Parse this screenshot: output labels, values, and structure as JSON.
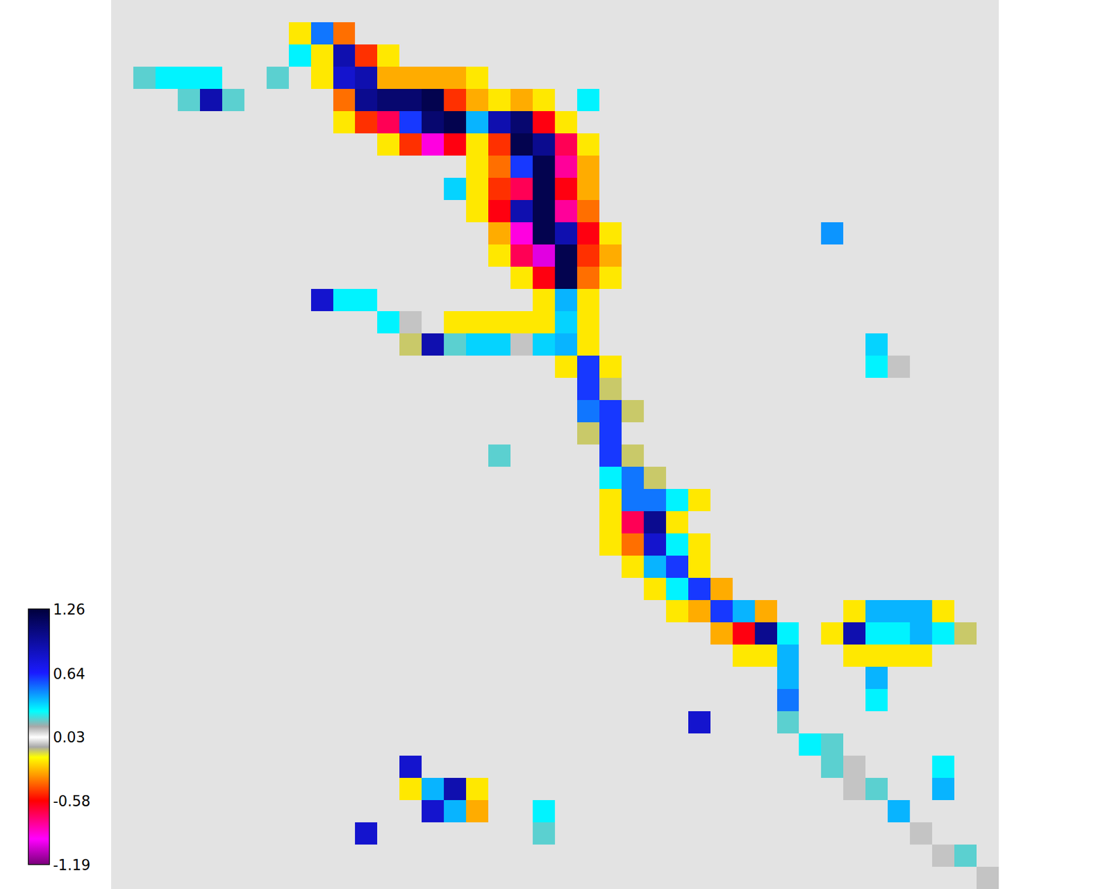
{
  "chart_data": {
    "type": "heatmap",
    "tick_labels": false,
    "colorbar": {
      "range": [
        -1.19,
        1.26
      ],
      "ticks": [
        1.26,
        0.64,
        0.03,
        -0.58,
        -1.19
      ]
    },
    "z": [
      [
        0,
        0,
        0,
        0,
        0,
        0,
        0,
        0,
        0,
        0,
        0,
        0,
        0,
        0,
        0,
        0,
        0,
        0,
        0,
        0,
        0,
        0,
        0,
        0,
        0,
        0,
        0,
        0,
        0,
        0,
        0,
        0,
        0,
        0,
        0,
        0,
        0,
        0,
        0,
        0
      ],
      [
        0,
        0,
        0,
        0,
        0,
        0,
        0,
        0,
        -0.2,
        0.5,
        -0.4,
        0,
        0,
        0,
        0,
        0,
        0,
        0,
        0,
        0,
        0,
        0,
        0,
        0,
        0,
        0,
        0,
        0,
        0,
        0,
        0,
        0,
        0,
        0,
        0,
        0,
        0,
        0,
        0,
        0
      ],
      [
        0,
        0,
        0,
        0,
        0,
        0,
        0,
        0,
        0.3,
        -0.2,
        0.9,
        -0.5,
        -0.2,
        0,
        0,
        0,
        0,
        0,
        0,
        0,
        0,
        0,
        0,
        0,
        0,
        0,
        0,
        0,
        0,
        0,
        0,
        0,
        0,
        0,
        0,
        0,
        0,
        0,
        0,
        0
      ],
      [
        0,
        0.2,
        0.3,
        0.3,
        0.3,
        0,
        0,
        0.2,
        0,
        -0.2,
        0.8,
        0.9,
        -0.3,
        -0.3,
        -0.3,
        -0.3,
        -0.2,
        0,
        0,
        0,
        0,
        0,
        0,
        0,
        0,
        0,
        0,
        0,
        0,
        0,
        0,
        0,
        0,
        0,
        0,
        0,
        0,
        0,
        0,
        0
      ],
      [
        0,
        0,
        0,
        0.2,
        0.9,
        0.2,
        0,
        0,
        0,
        0,
        -0.4,
        1.0,
        1.1,
        1.1,
        1.2,
        -0.5,
        -0.3,
        -0.2,
        -0.3,
        -0.2,
        0,
        0.3,
        0,
        0,
        0,
        0,
        0,
        0,
        0,
        0,
        0,
        0,
        0,
        0,
        0,
        0,
        0,
        0,
        0,
        0
      ],
      [
        0,
        0,
        0,
        0,
        0,
        0,
        0,
        0,
        0,
        0,
        -0.2,
        -0.5,
        -0.7,
        0.6,
        1.1,
        1.2,
        0.4,
        0.9,
        1.1,
        -0.6,
        -0.2,
        0,
        0,
        0,
        0,
        0,
        0,
        0,
        0,
        0,
        0,
        0,
        0,
        0,
        0,
        0,
        0,
        0,
        0,
        0
      ],
      [
        0,
        0,
        0,
        0,
        0,
        0,
        0,
        0,
        0,
        0,
        0,
        0,
        -0.2,
        -0.5,
        -0.9,
        -0.6,
        -0.2,
        -0.5,
        1.2,
        1.0,
        -0.7,
        -0.2,
        0,
        0,
        0,
        0,
        0,
        0,
        0,
        0,
        0,
        0,
        0,
        0,
        0,
        0,
        0,
        0,
        0,
        0
      ],
      [
        0,
        0,
        0,
        0,
        0,
        0,
        0,
        0,
        0,
        0,
        0,
        0,
        0,
        0,
        0,
        0,
        -0.2,
        -0.4,
        0.6,
        1.2,
        -0.8,
        -0.3,
        0,
        0,
        0,
        0,
        0,
        0,
        0,
        0,
        0,
        0,
        0,
        0,
        0,
        0,
        0,
        0,
        0,
        0
      ],
      [
        0,
        0,
        0,
        0,
        0,
        0,
        0,
        0,
        0,
        0,
        0,
        0,
        0,
        0,
        0,
        0.35,
        -0.2,
        -0.5,
        -0.7,
        1.2,
        -0.6,
        -0.3,
        0,
        0,
        0,
        0,
        0,
        0,
        0,
        0,
        0,
        0,
        0,
        0,
        0,
        0,
        0,
        0,
        0,
        0
      ],
      [
        0,
        0,
        0,
        0,
        0,
        0,
        0,
        0,
        0,
        0,
        0,
        0,
        0,
        0,
        0,
        0,
        -0.2,
        -0.6,
        0.9,
        1.2,
        -0.8,
        -0.4,
        0,
        0,
        0,
        0,
        0,
        0,
        0,
        0,
        0,
        0,
        0,
        0,
        0,
        0,
        0,
        0,
        0,
        0
      ],
      [
        0,
        0,
        0,
        0,
        0,
        0,
        0,
        0,
        0,
        0,
        0,
        0,
        0,
        0,
        0,
        0,
        0,
        -0.3,
        -0.9,
        1.2,
        0.9,
        -0.6,
        -0.2,
        0,
        0,
        0,
        0,
        0,
        0,
        0,
        0,
        0,
        0.45,
        0,
        0,
        0,
        0,
        0,
        0,
        0
      ],
      [
        0,
        0,
        0,
        0,
        0,
        0,
        0,
        0,
        0,
        0,
        0,
        0,
        0,
        0,
        0,
        0,
        0,
        -0.2,
        -0.7,
        -1.0,
        1.2,
        -0.5,
        -0.3,
        0,
        0,
        0,
        0,
        0,
        0,
        0,
        0,
        0,
        0,
        0,
        0,
        0,
        0,
        0,
        0,
        0
      ],
      [
        0,
        0,
        0,
        0,
        0,
        0,
        0,
        0,
        0,
        0,
        0,
        0,
        0,
        0,
        0,
        0,
        0,
        0,
        -0.2,
        -0.6,
        1.2,
        -0.4,
        -0.2,
        0,
        0,
        0,
        0,
        0,
        0,
        0,
        0,
        0,
        0,
        0,
        0,
        0,
        0,
        0,
        0,
        0
      ],
      [
        0,
        0,
        0,
        0,
        0,
        0,
        0,
        0,
        0,
        0.8,
        0.3,
        0.3,
        0,
        0,
        0,
        0,
        0,
        0,
        0,
        -0.2,
        0.4,
        -0.2,
        0,
        0,
        0,
        0,
        0,
        0,
        0,
        0,
        0,
        0,
        0,
        0,
        0,
        0,
        0,
        0,
        0,
        0
      ],
      [
        0,
        0,
        0,
        0,
        0,
        0,
        0,
        0,
        0,
        0,
        0,
        0,
        0.3,
        0.1,
        0,
        -0.2,
        -0.2,
        -0.2,
        -0.2,
        -0.2,
        0.35,
        -0.2,
        0,
        0,
        0,
        0,
        0,
        0,
        0,
        0,
        0,
        0,
        0,
        0,
        0,
        0,
        0,
        0,
        0,
        0
      ],
      [
        0,
        0,
        0,
        0,
        0,
        0,
        0,
        0,
        0,
        0,
        0,
        0,
        0,
        -0.1,
        0.9,
        0.2,
        0.35,
        0.35,
        0.1,
        0.35,
        0.4,
        -0.2,
        0,
        0,
        0,
        0,
        0,
        0,
        0,
        0,
        0,
        0,
        0,
        0,
        0.35,
        0,
        0,
        0,
        0,
        0
      ],
      [
        0,
        0,
        0,
        0,
        0,
        0,
        0,
        0,
        0,
        0,
        0,
        0,
        0,
        0,
        0,
        0,
        0,
        0,
        0,
        0,
        -0.2,
        0.6,
        -0.2,
        0,
        0,
        0,
        0,
        0,
        0,
        0,
        0,
        0,
        0,
        0,
        0.3,
        0.1,
        0,
        0,
        0,
        0
      ],
      [
        0,
        0,
        0,
        0,
        0,
        0,
        0,
        0,
        0,
        0,
        0,
        0,
        0,
        0,
        0,
        0,
        0,
        0,
        0,
        0,
        0,
        0.6,
        -0.1,
        0,
        0,
        0,
        0,
        0,
        0,
        0,
        0,
        0,
        0,
        0,
        0,
        0,
        0,
        0,
        0,
        0
      ],
      [
        0,
        0,
        0,
        0,
        0,
        0,
        0,
        0,
        0,
        0,
        0,
        0,
        0,
        0,
        0,
        0,
        0,
        0,
        0,
        0,
        0,
        0.5,
        0.6,
        -0.1,
        0,
        0,
        0,
        0,
        0,
        0,
        0,
        0,
        0,
        0,
        0,
        0,
        0,
        0,
        0,
        0
      ],
      [
        0,
        0,
        0,
        0,
        0,
        0,
        0,
        0,
        0,
        0,
        0,
        0,
        0,
        0,
        0,
        0,
        0,
        0,
        0,
        0,
        0,
        -0.1,
        0.6,
        0,
        0,
        0,
        0,
        0,
        0,
        0,
        0,
        0,
        0,
        0,
        0,
        0,
        0,
        0,
        0,
        0
      ],
      [
        0,
        0,
        0,
        0,
        0,
        0,
        0,
        0,
        0,
        0,
        0,
        0,
        0,
        0,
        0,
        0,
        0,
        0.2,
        0,
        0,
        0,
        0,
        0.6,
        -0.1,
        0,
        0,
        0,
        0,
        0,
        0,
        0,
        0,
        0,
        0,
        0,
        0,
        0,
        0,
        0,
        0
      ],
      [
        0,
        0,
        0,
        0,
        0,
        0,
        0,
        0,
        0,
        0,
        0,
        0,
        0,
        0,
        0,
        0,
        0,
        0,
        0,
        0,
        0,
        0,
        0.3,
        0.5,
        -0.1,
        0,
        0,
        0,
        0,
        0,
        0,
        0,
        0,
        0,
        0,
        0,
        0,
        0,
        0,
        0
      ],
      [
        0,
        0,
        0,
        0,
        0,
        0,
        0,
        0,
        0,
        0,
        0,
        0,
        0,
        0,
        0,
        0,
        0,
        0,
        0,
        0,
        0,
        0,
        -0.2,
        0.5,
        0.5,
        0.3,
        -0.2,
        0,
        0,
        0,
        0,
        0,
        0,
        0,
        0,
        0,
        0,
        0,
        0,
        0
      ],
      [
        0,
        0,
        0,
        0,
        0,
        0,
        0,
        0,
        0,
        0,
        0,
        0,
        0,
        0,
        0,
        0,
        0,
        0,
        0,
        0,
        0,
        0,
        -0.2,
        -0.7,
        1.0,
        -0.2,
        0,
        0,
        0,
        0,
        0,
        0,
        0,
        0,
        0,
        0,
        0,
        0,
        0,
        0
      ],
      [
        0,
        0,
        0,
        0,
        0,
        0,
        0,
        0,
        0,
        0,
        0,
        0,
        0,
        0,
        0,
        0,
        0,
        0,
        0,
        0,
        0,
        0,
        -0.2,
        -0.4,
        0.8,
        0.3,
        -0.2,
        0,
        0,
        0,
        0,
        0,
        0,
        0,
        0,
        0,
        0,
        0,
        0,
        0
      ],
      [
        0,
        0,
        0,
        0,
        0,
        0,
        0,
        0,
        0,
        0,
        0,
        0,
        0,
        0,
        0,
        0,
        0,
        0,
        0,
        0,
        0,
        0,
        0,
        -0.2,
        0.4,
        0.6,
        -0.2,
        0,
        0,
        0,
        0,
        0,
        0,
        0,
        0,
        0,
        0,
        0,
        0,
        0
      ],
      [
        0,
        0,
        0,
        0,
        0,
        0,
        0,
        0,
        0,
        0,
        0,
        0,
        0,
        0,
        0,
        0,
        0,
        0,
        0,
        0,
        0,
        0,
        0,
        0,
        -0.2,
        0.3,
        0.6,
        -0.3,
        0,
        0,
        0,
        0,
        0,
        0,
        0,
        0,
        0,
        0,
        0,
        0
      ],
      [
        0,
        0,
        0,
        0,
        0,
        0,
        0,
        0,
        0,
        0,
        0,
        0,
        0,
        0,
        0,
        0,
        0,
        0,
        0,
        0,
        0,
        0,
        0,
        0,
        0,
        -0.2,
        -0.3,
        0.6,
        0.4,
        -0.3,
        0,
        0,
        0,
        -0.2,
        0.4,
        0.4,
        0.4,
        -0.2,
        0,
        0
      ],
      [
        0,
        0,
        0,
        0,
        0,
        0,
        0,
        0,
        0,
        0,
        0,
        0,
        0,
        0,
        0,
        0,
        0,
        0,
        0,
        0,
        0,
        0,
        0,
        0,
        0,
        0,
        0,
        -0.3,
        -0.6,
        1.0,
        0.3,
        0,
        -0.2,
        0.9,
        0.3,
        0.3,
        0.4,
        0.3,
        -0.1,
        0
      ],
      [
        0,
        0,
        0,
        0,
        0,
        0,
        0,
        0,
        0,
        0,
        0,
        0,
        0,
        0,
        0,
        0,
        0,
        0,
        0,
        0,
        0,
        0,
        0,
        0,
        0,
        0,
        0,
        0,
        -0.2,
        -0.2,
        0.4,
        0,
        0,
        -0.2,
        -0.2,
        -0.2,
        -0.2,
        0,
        0,
        0
      ],
      [
        0,
        0,
        0,
        0,
        0,
        0,
        0,
        0,
        0,
        0,
        0,
        0,
        0,
        0,
        0,
        0,
        0,
        0,
        0,
        0,
        0,
        0,
        0,
        0,
        0,
        0,
        0,
        0,
        0,
        0,
        0.4,
        0,
        0,
        0,
        0.4,
        0,
        0,
        0,
        0,
        0
      ],
      [
        0,
        0,
        0,
        0,
        0,
        0,
        0,
        0,
        0,
        0,
        0,
        0,
        0,
        0,
        0,
        0,
        0,
        0,
        0,
        0,
        0,
        0,
        0,
        0,
        0,
        0,
        0,
        0,
        0,
        0,
        0.5,
        0,
        0,
        0,
        0.3,
        0,
        0,
        0,
        0,
        0
      ],
      [
        0,
        0,
        0,
        0,
        0,
        0,
        0,
        0,
        0,
        0,
        0,
        0,
        0,
        0,
        0,
        0,
        0,
        0,
        0,
        0,
        0,
        0,
        0,
        0,
        0,
        0,
        0.8,
        0,
        0,
        0,
        0.2,
        0,
        0,
        0,
        0,
        0,
        0,
        0,
        0,
        0
      ],
      [
        0,
        0,
        0,
        0,
        0,
        0,
        0,
        0,
        0,
        0,
        0,
        0,
        0,
        0,
        0,
        0,
        0,
        0,
        0,
        0,
        0,
        0,
        0,
        0,
        0,
        0,
        0,
        0,
        0,
        0,
        0,
        0.3,
        0.2,
        0,
        0,
        0,
        0,
        0,
        0,
        0
      ],
      [
        0,
        0,
        0,
        0,
        0,
        0,
        0,
        0,
        0,
        0,
        0,
        0,
        0,
        0.8,
        0,
        0,
        0,
        0,
        0,
        0,
        0,
        0,
        0,
        0,
        0,
        0,
        0,
        0,
        0,
        0,
        0,
        0,
        0.2,
        0.1,
        0,
        0,
        0,
        0.3,
        0,
        0
      ],
      [
        0,
        0,
        0,
        0,
        0,
        0,
        0,
        0,
        0,
        0,
        0,
        0,
        0,
        -0.2,
        0.4,
        0.9,
        -0.2,
        0,
        0,
        0,
        0,
        0,
        0,
        0,
        0,
        0,
        0,
        0,
        0,
        0,
        0,
        0,
        0,
        0.1,
        0.2,
        0,
        0,
        0.4,
        0,
        0
      ],
      [
        0,
        0,
        0,
        0,
        0,
        0,
        0,
        0,
        0,
        0,
        0,
        0,
        0,
        0,
        0.8,
        0.4,
        -0.3,
        0,
        0,
        0.3,
        0,
        0,
        0,
        0,
        0,
        0,
        0,
        0,
        0,
        0,
        0,
        0,
        0,
        0,
        0,
        0.4,
        0,
        0,
        0,
        0
      ],
      [
        0,
        0,
        0,
        0,
        0,
        0,
        0,
        0,
        0,
        0,
        0,
        0.8,
        0,
        0,
        0,
        0,
        0,
        0,
        0,
        0.2,
        0,
        0,
        0,
        0,
        0,
        0,
        0,
        0,
        0,
        0,
        0,
        0,
        0,
        0,
        0,
        0,
        0.1,
        0,
        0,
        0
      ],
      [
        0,
        0,
        0,
        0,
        0,
        0,
        0,
        0,
        0,
        0,
        0,
        0,
        0,
        0,
        0,
        0,
        0,
        0,
        0,
        0,
        0,
        0,
        0,
        0,
        0,
        0,
        0,
        0,
        0,
        0,
        0,
        0,
        0,
        0,
        0,
        0,
        0,
        0.1,
        0.2,
        0
      ],
      [
        0,
        0,
        0,
        0,
        0,
        0,
        0,
        0,
        0,
        0,
        0,
        0,
        0,
        0,
        0,
        0,
        0,
        0,
        0,
        0,
        0,
        0,
        0,
        0,
        0,
        0,
        0,
        0,
        0,
        0,
        0,
        0,
        0,
        0,
        0,
        0,
        0,
        0,
        0,
        0.1
      ]
    ]
  }
}
